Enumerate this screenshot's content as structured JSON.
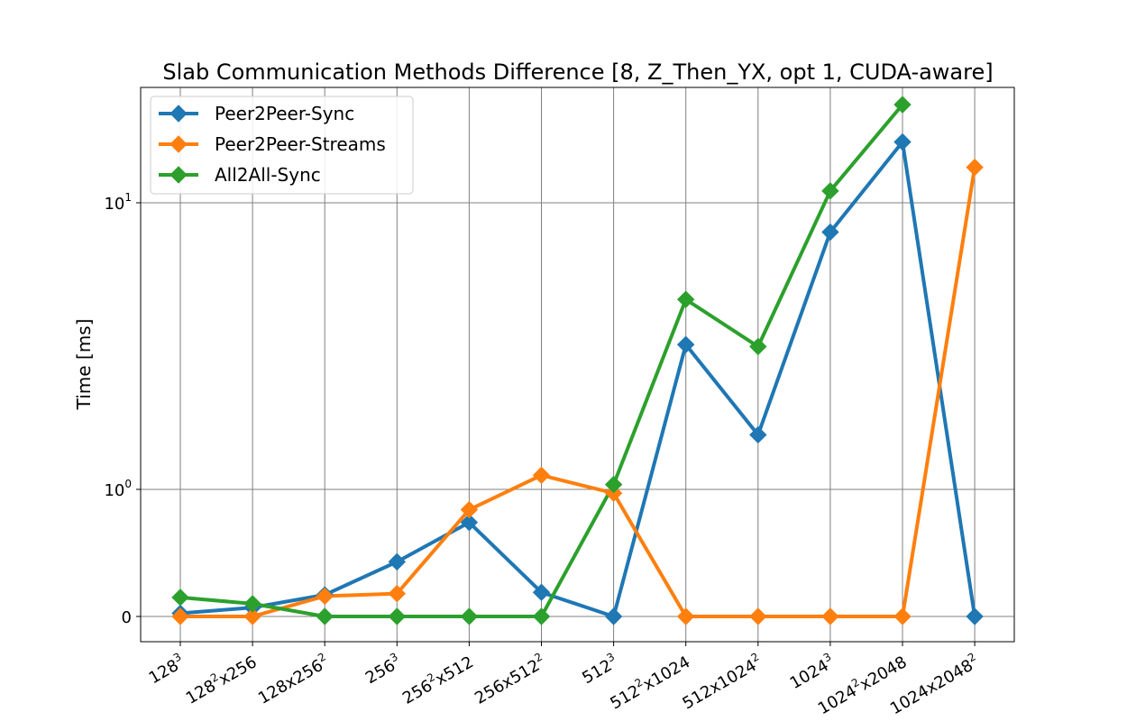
{
  "chart_data": {
    "type": "line",
    "title": "Slab Communication Methods Difference [8, Z_Then_YX, opt 1, CUDA-aware]",
    "xlabel": "",
    "ylabel": "Time [ms]",
    "yscale": "symlog",
    "ylim": [
      0,
      25
    ],
    "grid": true,
    "legend_position": "top-left",
    "categories": [
      {
        "base": "128",
        "sup": "3",
        "mid": "",
        "sup2": ""
      },
      {
        "base": "128",
        "sup": "2",
        "mid": "x256",
        "sup2": ""
      },
      {
        "base": "128x256",
        "sup": "2",
        "mid": "",
        "sup2": ""
      },
      {
        "base": "256",
        "sup": "3",
        "mid": "",
        "sup2": ""
      },
      {
        "base": "256",
        "sup": "2",
        "mid": "x512",
        "sup2": ""
      },
      {
        "base": "256x512",
        "sup": "2",
        "mid": "",
        "sup2": ""
      },
      {
        "base": "512",
        "sup": "3",
        "mid": "",
        "sup2": ""
      },
      {
        "base": "512",
        "sup": "2",
        "mid": "x1024",
        "sup2": ""
      },
      {
        "base": "512x1024",
        "sup": "2",
        "mid": "",
        "sup2": ""
      },
      {
        "base": "1024",
        "sup": "3",
        "mid": "",
        "sup2": ""
      },
      {
        "base": "1024",
        "sup": "2",
        "mid": "x2048",
        "sup2": ""
      },
      {
        "base": "1024x2048",
        "sup": "2",
        "mid": "",
        "sup2": ""
      }
    ],
    "yticks": [
      {
        "value": 0,
        "base": "0",
        "sup": ""
      },
      {
        "value": 1,
        "base": "10",
        "sup": "0"
      },
      {
        "value": 10,
        "base": "10",
        "sup": "1"
      }
    ],
    "series": [
      {
        "name": "Peer2Peer-Sync",
        "color": "#1f77b4",
        "values": [
          0.025,
          0.07,
          0.17,
          0.43,
          0.74,
          0.19,
          0.0,
          3.2,
          1.55,
          7.9,
          16.3,
          0.0
        ]
      },
      {
        "name": "Peer2Peer-Streams",
        "color": "#ff7f0e",
        "values": [
          0.0,
          0.0,
          0.16,
          0.18,
          0.84,
          1.12,
          0.97,
          0.0,
          0.0,
          0.0,
          0.0,
          13.3
        ]
      },
      {
        "name": "All2All-Sync",
        "color": "#2ca02c",
        "values": [
          0.15,
          0.1,
          0.0,
          0.0,
          0.0,
          0.0,
          1.04,
          4.6,
          3.15,
          11.0,
          22.0,
          null
        ]
      }
    ]
  }
}
